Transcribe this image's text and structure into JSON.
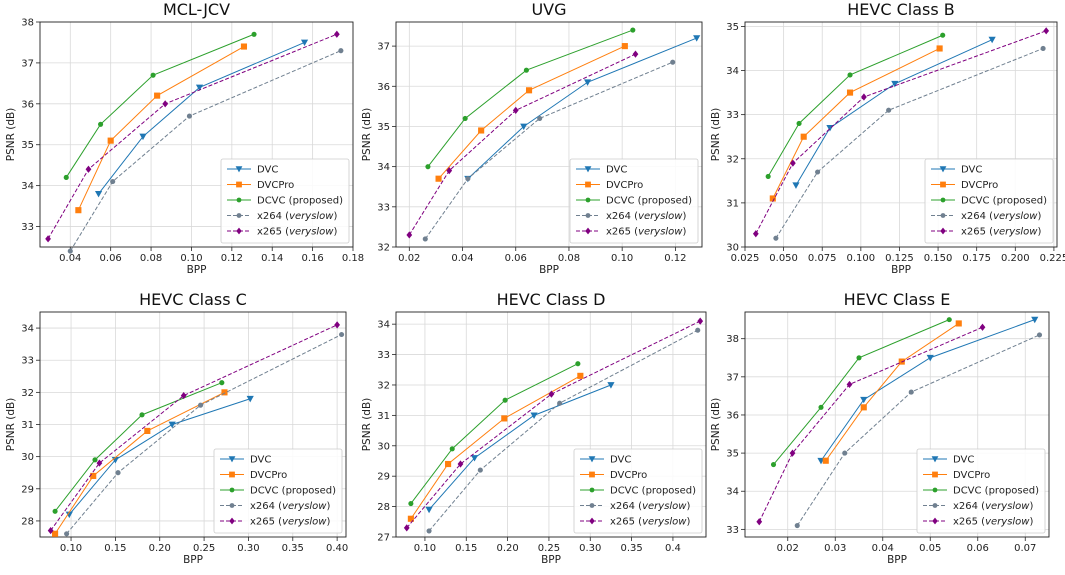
{
  "chart_data": [
    {
      "type": "line",
      "title": "MCL-JCV",
      "xlabel": "BPP",
      "ylabel": "PSNR (dB)",
      "xlim": [
        0.025,
        0.18
      ],
      "ylim": [
        32.5,
        38
      ],
      "xticks": [
        0.04,
        0.06,
        0.08,
        0.1,
        0.12,
        0.14,
        0.16,
        0.18
      ],
      "xtick_labels": [
        "0.04",
        "0.06",
        "0.08",
        "0.10",
        "0.12",
        "0.14",
        "0.16",
        "0.18"
      ],
      "yticks": [
        33,
        34,
        35,
        36,
        37,
        38
      ],
      "ytick_labels": [
        "33",
        "34",
        "35",
        "36",
        "37",
        "38"
      ],
      "grid": true,
      "legend_position": "bottom-right",
      "series": [
        {
          "name": "DVC",
          "x": [
            0.054,
            0.076,
            0.104,
            0.156
          ],
          "y": [
            33.8,
            35.2,
            36.4,
            37.5
          ]
        },
        {
          "name": "DVCPro",
          "x": [
            0.044,
            0.06,
            0.083,
            0.126
          ],
          "y": [
            33.4,
            35.1,
            36.2,
            37.4
          ]
        },
        {
          "name": "DCVC (proposed)",
          "x": [
            0.038,
            0.055,
            0.081,
            0.131
          ],
          "y": [
            34.2,
            35.5,
            36.7,
            37.7
          ]
        },
        {
          "name": "x264 (veryslow)",
          "x": [
            0.04,
            0.061,
            0.099,
            0.174
          ],
          "y": [
            32.4,
            34.1,
            35.7,
            37.3
          ]
        },
        {
          "name": "x265 (veryslow)",
          "x": [
            0.029,
            0.049,
            0.087,
            0.172
          ],
          "y": [
            32.7,
            34.4,
            36.0,
            37.7
          ]
        }
      ]
    },
    {
      "type": "line",
      "title": "UVG",
      "xlabel": "BPP",
      "ylabel": "PSNR (dB)",
      "xlim": [
        0.015,
        0.13
      ],
      "ylim": [
        32,
        37.6
      ],
      "xticks": [
        0.02,
        0.04,
        0.06,
        0.08,
        0.1,
        0.12
      ],
      "xtick_labels": [
        "0.02",
        "0.04",
        "0.06",
        "0.08",
        "0.10",
        "0.12"
      ],
      "yticks": [
        32,
        33,
        34,
        35,
        36,
        37
      ],
      "ytick_labels": [
        "32",
        "33",
        "34",
        "35",
        "36",
        "37"
      ],
      "grid": true,
      "legend_position": "bottom-right",
      "series": [
        {
          "name": "DVC",
          "x": [
            0.042,
            0.063,
            0.087,
            0.128
          ],
          "y": [
            33.7,
            35.0,
            36.1,
            37.2
          ]
        },
        {
          "name": "DVCPro",
          "x": [
            0.031,
            0.047,
            0.065,
            0.101
          ],
          "y": [
            33.7,
            34.9,
            35.9,
            37.0
          ]
        },
        {
          "name": "DCVC (proposed)",
          "x": [
            0.027,
            0.041,
            0.064,
            0.104
          ],
          "y": [
            34.0,
            35.2,
            36.4,
            37.4
          ]
        },
        {
          "name": "x264 (veryslow)",
          "x": [
            0.026,
            0.042,
            0.069,
            0.119
          ],
          "y": [
            32.2,
            33.7,
            35.2,
            36.6
          ]
        },
        {
          "name": "x265 (veryslow)",
          "x": [
            0.02,
            0.035,
            0.06,
            0.105
          ],
          "y": [
            32.3,
            33.9,
            35.4,
            36.8
          ]
        }
      ]
    },
    {
      "type": "line",
      "title": "HEVC Class B",
      "xlabel": "BPP",
      "ylabel": "PSNR (dB)",
      "xlim": [
        0.025,
        0.227
      ],
      "ylim": [
        30,
        35.1
      ],
      "xticks": [
        0.025,
        0.05,
        0.075,
        0.1,
        0.125,
        0.15,
        0.175,
        0.2,
        0.225
      ],
      "xtick_labels": [
        "0.025",
        "0.050",
        "0.075",
        "0.100",
        "0.125",
        "0.150",
        "0.175",
        "0.200",
        "0.225"
      ],
      "yticks": [
        30,
        31,
        32,
        33,
        34,
        35
      ],
      "ytick_labels": [
        "30",
        "31",
        "32",
        "33",
        "34",
        "35"
      ],
      "grid": true,
      "legend_position": "bottom-right",
      "series": [
        {
          "name": "DVC",
          "x": [
            0.058,
            0.08,
            0.122,
            0.185
          ],
          "y": [
            31.4,
            32.7,
            33.7,
            34.7
          ]
        },
        {
          "name": "DVCPro",
          "x": [
            0.043,
            0.063,
            0.093,
            0.151
          ],
          "y": [
            31.1,
            32.5,
            33.5,
            34.5
          ]
        },
        {
          "name": "DCVC (proposed)",
          "x": [
            0.04,
            0.06,
            0.093,
            0.153
          ],
          "y": [
            31.6,
            32.8,
            33.9,
            34.8
          ]
        },
        {
          "name": "x264 (veryslow)",
          "x": [
            0.045,
            0.072,
            0.118,
            0.218
          ],
          "y": [
            30.2,
            31.7,
            33.1,
            34.5
          ]
        },
        {
          "name": "x265 (veryslow)",
          "x": [
            0.032,
            0.056,
            0.102,
            0.22
          ],
          "y": [
            30.3,
            31.9,
            33.4,
            34.9
          ]
        }
      ]
    },
    {
      "type": "line",
      "title": "HEVC Class C",
      "xlabel": "BPP",
      "ylabel": "PSNR (dB)",
      "xlim": [
        0.065,
        0.41
      ],
      "ylim": [
        27.5,
        34.5
      ],
      "xticks": [
        0.1,
        0.15,
        0.2,
        0.25,
        0.3,
        0.35,
        0.4
      ],
      "xtick_labels": [
        "0.10",
        "0.15",
        "0.20",
        "0.25",
        "0.30",
        "0.35",
        "0.40"
      ],
      "yticks": [
        28,
        29,
        30,
        31,
        32,
        33,
        34
      ],
      "ytick_labels": [
        "28",
        "29",
        "30",
        "31",
        "32",
        "33",
        "34"
      ],
      "grid": true,
      "legend_position": "bottom-right",
      "series": [
        {
          "name": "DVC",
          "x": [
            0.098,
            0.15,
            0.214,
            0.302
          ],
          "y": [
            28.2,
            29.9,
            31.0,
            31.8
          ]
        },
        {
          "name": "DVCPro",
          "x": [
            0.082,
            0.125,
            0.186,
            0.273
          ],
          "y": [
            27.6,
            29.4,
            30.8,
            32.0
          ]
        },
        {
          "name": "DCVC (proposed)",
          "x": [
            0.082,
            0.127,
            0.18,
            0.27
          ],
          "y": [
            28.3,
            29.9,
            31.3,
            32.3
          ]
        },
        {
          "name": "x264 (veryslow)",
          "x": [
            0.095,
            0.153,
            0.246,
            0.405
          ],
          "y": [
            27.6,
            29.5,
            31.6,
            33.8
          ]
        },
        {
          "name": "x265 (veryslow)",
          "x": [
            0.077,
            0.132,
            0.227,
            0.4
          ],
          "y": [
            27.7,
            29.8,
            31.9,
            34.1
          ]
        }
      ]
    },
    {
      "type": "line",
      "title": "HEVC Class D",
      "xlabel": "BPP",
      "ylabel": "PSNR (dB)",
      "xlim": [
        0.065,
        0.44
      ],
      "ylim": [
        27,
        34.4
      ],
      "xticks": [
        0.1,
        0.15,
        0.2,
        0.25,
        0.3,
        0.35,
        0.4
      ],
      "xtick_labels": [
        "0.10",
        "0.15",
        "0.20",
        "0.25",
        "0.30",
        "0.35",
        "0.4"
      ],
      "yticks": [
        27,
        28,
        29,
        30,
        31,
        32,
        33,
        34
      ],
      "ytick_labels": [
        "27",
        "28",
        "29",
        "30",
        "31",
        "32",
        "33",
        "34"
      ],
      "grid": true,
      "legend_position": "bottom-right",
      "series": [
        {
          "name": "DVC",
          "x": [
            0.105,
            0.16,
            0.232,
            0.325
          ],
          "y": [
            27.9,
            29.6,
            31.0,
            32.0
          ]
        },
        {
          "name": "DVCPro",
          "x": [
            0.083,
            0.128,
            0.196,
            0.288
          ],
          "y": [
            27.6,
            29.4,
            30.9,
            32.3
          ]
        },
        {
          "name": "DCVC (proposed)",
          "x": [
            0.083,
            0.133,
            0.197,
            0.285
          ],
          "y": [
            28.1,
            29.9,
            31.5,
            32.7
          ]
        },
        {
          "name": "x264 (veryslow)",
          "x": [
            0.105,
            0.167,
            0.263,
            0.43
          ],
          "y": [
            27.2,
            29.2,
            31.4,
            33.8
          ]
        },
        {
          "name": "x265 (veryslow)",
          "x": [
            0.078,
            0.143,
            0.253,
            0.433
          ],
          "y": [
            27.3,
            29.4,
            31.7,
            34.1
          ]
        }
      ]
    },
    {
      "type": "line",
      "title": "HEVC Class E",
      "xlabel": "BPP",
      "ylabel": "PSNR (dB)",
      "xlim": [
        0.011,
        0.075
      ],
      "ylim": [
        32.8,
        38.7
      ],
      "xticks": [
        0.01,
        0.02,
        0.03,
        0.04,
        0.05,
        0.06,
        0.07
      ],
      "xtick_labels": [
        "0.01",
        "0.02",
        "0.03",
        "0.04",
        "0.05",
        "0.06",
        "0.07"
      ],
      "yticks": [
        33,
        34,
        35,
        36,
        37,
        38
      ],
      "ytick_labels": [
        "33",
        "34",
        "35",
        "36",
        "37",
        "38"
      ],
      "grid": true,
      "legend_position": "bottom-right",
      "series": [
        {
          "name": "DVC",
          "x": [
            0.027,
            0.036,
            0.05,
            0.072
          ],
          "y": [
            34.8,
            36.4,
            37.5,
            38.5
          ]
        },
        {
          "name": "DVCPro",
          "x": [
            0.028,
            0.036,
            0.044,
            0.056
          ],
          "y": [
            34.8,
            36.2,
            37.4,
            38.4
          ]
        },
        {
          "name": "DCVC (proposed)",
          "x": [
            0.017,
            0.027,
            0.035,
            0.054
          ],
          "y": [
            34.7,
            36.2,
            37.5,
            38.5
          ]
        },
        {
          "name": "x264 (veryslow)",
          "x": [
            0.022,
            0.032,
            0.046,
            0.073
          ],
          "y": [
            33.1,
            35.0,
            36.6,
            38.1
          ]
        },
        {
          "name": "x265 (veryslow)",
          "x": [
            0.014,
            0.021,
            0.033,
            0.061
          ],
          "y": [
            33.2,
            35.0,
            36.8,
            38.3
          ]
        }
      ]
    }
  ],
  "series_styles": [
    {
      "color": "#1f77b4",
      "marker": "triangle-down",
      "dashed": false,
      "legend_prefix": "DVC",
      "legend_italic": ""
    },
    {
      "color": "#ff7f0e",
      "marker": "square",
      "dashed": false,
      "legend_prefix": "DVCPro",
      "legend_italic": ""
    },
    {
      "color": "#2ca02c",
      "marker": "circle",
      "dashed": false,
      "legend_prefix": "DCVC (proposed)",
      "legend_italic": ""
    },
    {
      "color": "#708090",
      "marker": "circle",
      "dashed": true,
      "legend_prefix": "x264 (",
      "legend_italic": "veryslow"
    },
    {
      "color": "#800080",
      "marker": "diamond",
      "dashed": true,
      "legend_prefix": "x265 (",
      "legend_italic": "veryslow"
    }
  ]
}
